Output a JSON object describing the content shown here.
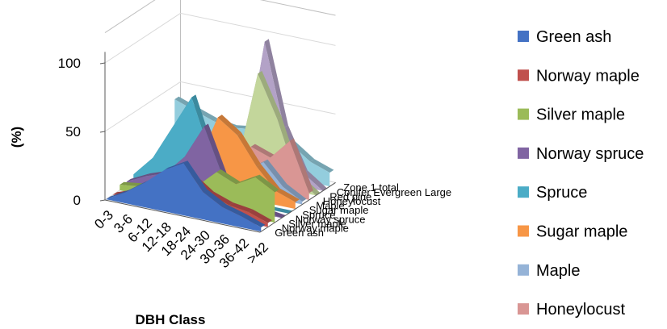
{
  "chart_data": {
    "type": "area",
    "subtype": "3d-area",
    "title": "",
    "xlabel": "DBH Class",
    "ylabel": "(%)",
    "ylim": [
      0,
      100
    ],
    "yticks": [
      0,
      50,
      100
    ],
    "categories": [
      "0-3",
      "3-6",
      "6-12",
      "12-18",
      "18-24",
      "24-30",
      "30-36",
      "36-42",
      ">42"
    ],
    "depth_labels": [
      "Green ash",
      "Norway maple",
      "Silver maple",
      "Norway spruce",
      "Spruce",
      "Sugar maple",
      "Maple",
      "Honeylocust",
      "Red pine",
      "Conifer Evergreen Large",
      "Zone 1 total"
    ],
    "legend_position": "right",
    "series": [
      {
        "name": "Green ash",
        "color": "#4472C4",
        "values": [
          0,
          8,
          18,
          30,
          38,
          20,
          12,
          8,
          3
        ]
      },
      {
        "name": "Norway maple",
        "color": "#C0504D",
        "values": [
          0,
          5,
          12,
          22,
          25,
          15,
          10,
          8,
          3
        ]
      },
      {
        "name": "Silver maple",
        "color": "#9BBB59",
        "values": [
          4,
          6,
          8,
          10,
          15,
          28,
          22,
          30,
          22
        ]
      },
      {
        "name": "Norway spruce",
        "color": "#8064A2",
        "values": [
          3,
          10,
          15,
          30,
          55,
          20,
          5,
          2,
          0
        ]
      },
      {
        "name": "Spruce",
        "color": "#4BACC6",
        "values": [
          5,
          20,
          45,
          70,
          30,
          5,
          0,
          0,
          0
        ]
      },
      {
        "name": "Sugar maple",
        "color": "#F79646",
        "values": [
          5,
          10,
          15,
          20,
          55,
          45,
          25,
          10,
          5
        ]
      },
      {
        "name": "Maple",
        "color": "#95B3D7",
        "values": [
          2,
          3,
          5,
          8,
          10,
          15,
          25,
          10,
          2
        ]
      },
      {
        "name": "Honeylocust",
        "color": "#D99694",
        "values": [
          0,
          2,
          5,
          8,
          15,
          30,
          25,
          40,
          5
        ]
      },
      {
        "name": "",
        "color": "#C3D69B",
        "values": [
          0,
          0,
          0,
          5,
          15,
          80,
          50,
          10,
          0
        ]
      },
      {
        "name": "",
        "color": "#B3A2C7",
        "values": [
          0,
          0,
          0,
          5,
          15,
          100,
          40,
          10,
          0
        ]
      },
      {
        "name": "",
        "color": "#93CDDD",
        "values": [
          40,
          35,
          30,
          28,
          30,
          32,
          25,
          15,
          10
        ]
      }
    ]
  }
}
